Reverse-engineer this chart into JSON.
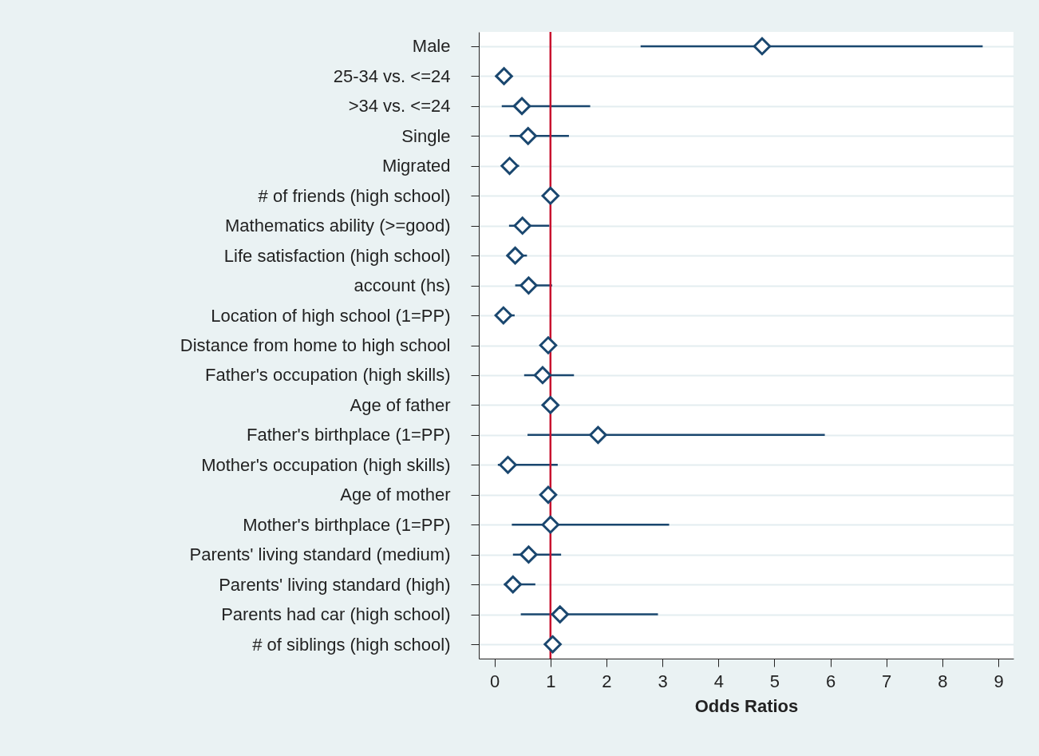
{
  "chart_data": {
    "type": "scatter",
    "orientation": "horizontal",
    "xlabel": "Odds Ratios",
    "categories": [
      "Male",
      "25-34 vs. <=24",
      ">34 vs. <=24",
      "Single",
      "Migrated",
      "# of friends (high school)",
      "Mathematics ability (>=good)",
      "Life satisfaction (high school)",
      "account (hs)",
      "Location of high school (1=PP)",
      "Distance from home to high school",
      "Father's occupation (high skills)",
      "Age of father",
      "Father's birthplace (1=PP)",
      "Mother's occupation (high skills)",
      "Age of mother",
      "Mother's birthplace (1=PP)",
      "Parents' living standard (medium)",
      "Parents' living standard (high)",
      "Parents had car (high school)",
      "# of siblings (high school)"
    ],
    "series": [
      {
        "color": "#1a476f",
        "values": [
          4.78,
          0.17,
          0.49,
          0.6,
          0.27,
          1.0,
          0.5,
          0.37,
          0.61,
          0.16,
          0.96,
          0.86,
          1.0,
          1.85,
          0.24,
          0.96,
          1.0,
          0.61,
          0.33,
          1.17,
          1.04
        ],
        "errors": [
          [
            2.61,
            8.72
          ],
          null,
          [
            0.13,
            1.71
          ],
          [
            0.27,
            1.33
          ],
          [
            0.2,
            0.44
          ],
          null,
          [
            0.26,
            0.98
          ],
          [
            0.25,
            0.58
          ],
          [
            0.37,
            1.03
          ],
          [
            0.1,
            0.36
          ],
          null,
          [
            0.53,
            1.42
          ],
          null,
          [
            0.59,
            5.9
          ],
          [
            0.06,
            1.13
          ],
          null,
          [
            0.31,
            3.12
          ],
          [
            0.33,
            1.19
          ],
          [
            0.17,
            0.73
          ],
          [
            0.47,
            2.92
          ],
          null
        ]
      }
    ],
    "xlim": [
      -0.28,
      9.27
    ],
    "xticks": [
      0,
      1,
      2,
      3,
      4,
      5,
      6,
      7,
      8,
      9
    ],
    "ref_lines": [
      {
        "axis": "x",
        "value": 1,
        "color": "#c8102e"
      }
    ],
    "grid": "y",
    "marker": "diamond"
  }
}
